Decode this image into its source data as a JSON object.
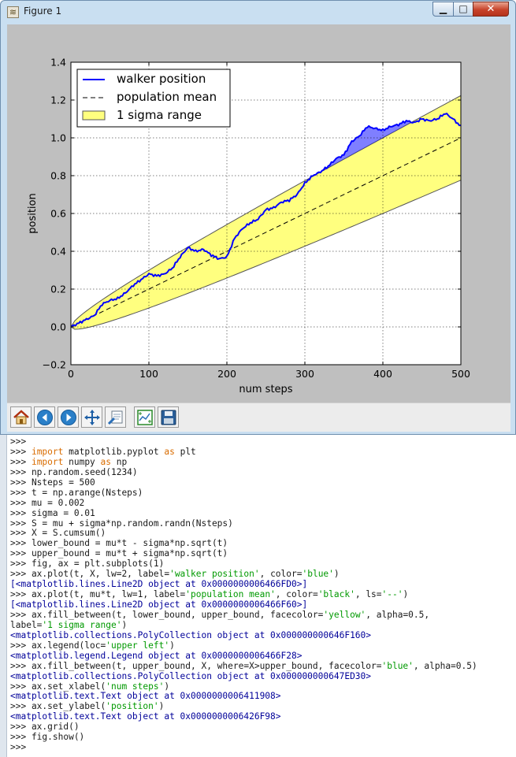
{
  "window": {
    "title": "Figure 1",
    "min_label": "▁",
    "max_label": "□",
    "close_label": "✕"
  },
  "toolbar": [
    "home-icon",
    "back-arrow-icon",
    "forward-arrow-icon",
    "pan-arrows-icon",
    "zoom-rect-icon",
    "configure-subplots-icon",
    "save-floppy-icon"
  ],
  "chart_data": {
    "type": "line",
    "xlabel": "num steps",
    "ylabel": "position",
    "xlim": [
      0,
      500
    ],
    "ylim": [
      -0.2,
      1.4
    ],
    "xticks": [
      "0",
      "100",
      "200",
      "300",
      "400",
      "500"
    ],
    "yticks": [
      "−0.2",
      "0.0",
      "0.2",
      "0.4",
      "0.6",
      "0.8",
      "1.0",
      "1.2",
      "1.4"
    ],
    "grid": true,
    "legend_position": "upper left",
    "legend": [
      "walker position",
      "population mean",
      "1 sigma range"
    ],
    "series": [
      {
        "name": "walker position",
        "color": "#0000ff",
        "x": [
          0,
          10,
          20,
          30,
          40,
          50,
          60,
          70,
          80,
          90,
          100,
          110,
          120,
          130,
          140,
          150,
          160,
          170,
          180,
          190,
          200,
          210,
          220,
          230,
          240,
          250,
          260,
          270,
          280,
          290,
          300,
          310,
          320,
          330,
          340,
          350,
          360,
          370,
          380,
          390,
          400,
          410,
          420,
          430,
          440,
          450,
          460,
          470,
          480,
          490,
          500
        ],
        "values": [
          0.0,
          0.02,
          0.04,
          0.06,
          0.12,
          0.14,
          0.15,
          0.18,
          0.22,
          0.25,
          0.28,
          0.27,
          0.28,
          0.31,
          0.37,
          0.42,
          0.4,
          0.41,
          0.38,
          0.36,
          0.37,
          0.47,
          0.52,
          0.55,
          0.57,
          0.62,
          0.63,
          0.66,
          0.67,
          0.7,
          0.76,
          0.8,
          0.82,
          0.85,
          0.89,
          0.91,
          0.98,
          1.01,
          1.06,
          1.05,
          1.04,
          1.06,
          1.07,
          1.09,
          1.08,
          1.1,
          1.09,
          1.1,
          1.13,
          1.1,
          1.06
        ]
      },
      {
        "name": "population mean",
        "color": "#000000",
        "x": [
          0,
          500
        ],
        "values": [
          0.0,
          1.0
        ]
      }
    ],
    "band": {
      "name": "1 sigma range",
      "color": "#ffff00",
      "mu": 0.002,
      "sigma": 0.01
    },
    "above_band_color": "#0000ff"
  },
  "console": [
    [
      [
        ">>> ",
        ""
      ],
      [
        "",
        "t"
      ]
    ],
    [
      [
        ">>> ",
        ""
      ],
      [
        "import",
        "kw"
      ],
      [
        " matplotlib.pyplot ",
        ""
      ],
      [
        "as",
        "kw"
      ],
      [
        " plt",
        ""
      ]
    ],
    [
      [
        ">>> ",
        ""
      ],
      [
        "import",
        "kw"
      ],
      [
        " numpy ",
        ""
      ],
      [
        "as",
        "kw"
      ],
      [
        " np",
        ""
      ]
    ],
    [
      [
        ">>> np.random.seed(1234)",
        ""
      ]
    ],
    [
      [
        ">>> Nsteps = 500",
        ""
      ]
    ],
    [
      [
        ">>> t = np.arange(Nsteps)",
        ""
      ]
    ],
    [
      [
        ">>> mu = 0.002",
        ""
      ]
    ],
    [
      [
        ">>> sigma = 0.01",
        ""
      ]
    ],
    [
      [
        ">>> S = mu + sigma*np.random.randn(Nsteps)",
        ""
      ]
    ],
    [
      [
        ">>> X = S.cumsum()",
        ""
      ]
    ],
    [
      [
        ">>> lower_bound = mu*t - sigma*np.sqrt(t)",
        ""
      ]
    ],
    [
      [
        ">>> upper_bound = mu*t + sigma*np.sqrt(t)",
        ""
      ]
    ],
    [
      [
        ">>> fig, ax = plt.subplots(1)",
        ""
      ]
    ],
    [
      [
        ">>> ax.plot(t, X, lw=2, label=",
        ""
      ],
      [
        "'walker position'",
        "str"
      ],
      [
        ", color=",
        ""
      ],
      [
        "'blue'",
        "str"
      ],
      [
        ")",
        ""
      ]
    ],
    [
      [
        "[<matplotlib.lines.Line2D object at 0x0000000006466FD0>]",
        "out"
      ]
    ],
    [
      [
        ">>> ax.plot(t, mu*t, lw=1, label=",
        ""
      ],
      [
        "'population mean'",
        "str"
      ],
      [
        ", color=",
        ""
      ],
      [
        "'black'",
        "str"
      ],
      [
        ", ls=",
        ""
      ],
      [
        "'--'",
        "str"
      ],
      [
        ")",
        ""
      ]
    ],
    [
      [
        "[<matplotlib.lines.Line2D object at 0x0000000006466F60>]",
        "out"
      ]
    ],
    [
      [
        ">>> ax.fill_between(t, lower_bound, upper_bound, facecolor=",
        ""
      ],
      [
        "'yellow'",
        "str"
      ],
      [
        ", alpha=0.5,",
        ""
      ]
    ],
    [
      [
        "label=",
        ""
      ],
      [
        "'1 sigma range'",
        "str"
      ],
      [
        ")",
        ""
      ]
    ],
    [
      [
        "<matplotlib.collections.PolyCollection object at 0x000000000646F160>",
        "out"
      ]
    ],
    [
      [
        ">>> ax.legend(loc=",
        ""
      ],
      [
        "'upper left'",
        "str"
      ],
      [
        ")",
        ""
      ]
    ],
    [
      [
        "<matplotlib.legend.Legend object at 0x0000000006466F28>",
        "out"
      ]
    ],
    [
      [
        ">>> ax.fill_between(t, upper_bound, X, where=X>upper_bound, facecolor=",
        ""
      ],
      [
        "'blue'",
        "str"
      ],
      [
        ", alpha=0.5)",
        ""
      ]
    ],
    [
      [
        "<matplotlib.collections.PolyCollection object at 0x000000000647ED30>",
        "out"
      ]
    ],
    [
      [
        ">>> ax.set_xlabel(",
        ""
      ],
      [
        "'num steps'",
        "str"
      ],
      [
        ")",
        ""
      ]
    ],
    [
      [
        "<matplotlib.text.Text object at 0x0000000006411908>",
        "out"
      ]
    ],
    [
      [
        ">>> ax.set_ylabel(",
        ""
      ],
      [
        "'position'",
        "str"
      ],
      [
        ")",
        ""
      ]
    ],
    [
      [
        "<matplotlib.text.Text object at 0x0000000006426F98>",
        "out"
      ]
    ],
    [
      [
        ">>> ax.grid()",
        ""
      ]
    ],
    [
      [
        ">>> fig.show()",
        ""
      ]
    ],
    [
      [
        ">>>",
        ""
      ]
    ]
  ]
}
